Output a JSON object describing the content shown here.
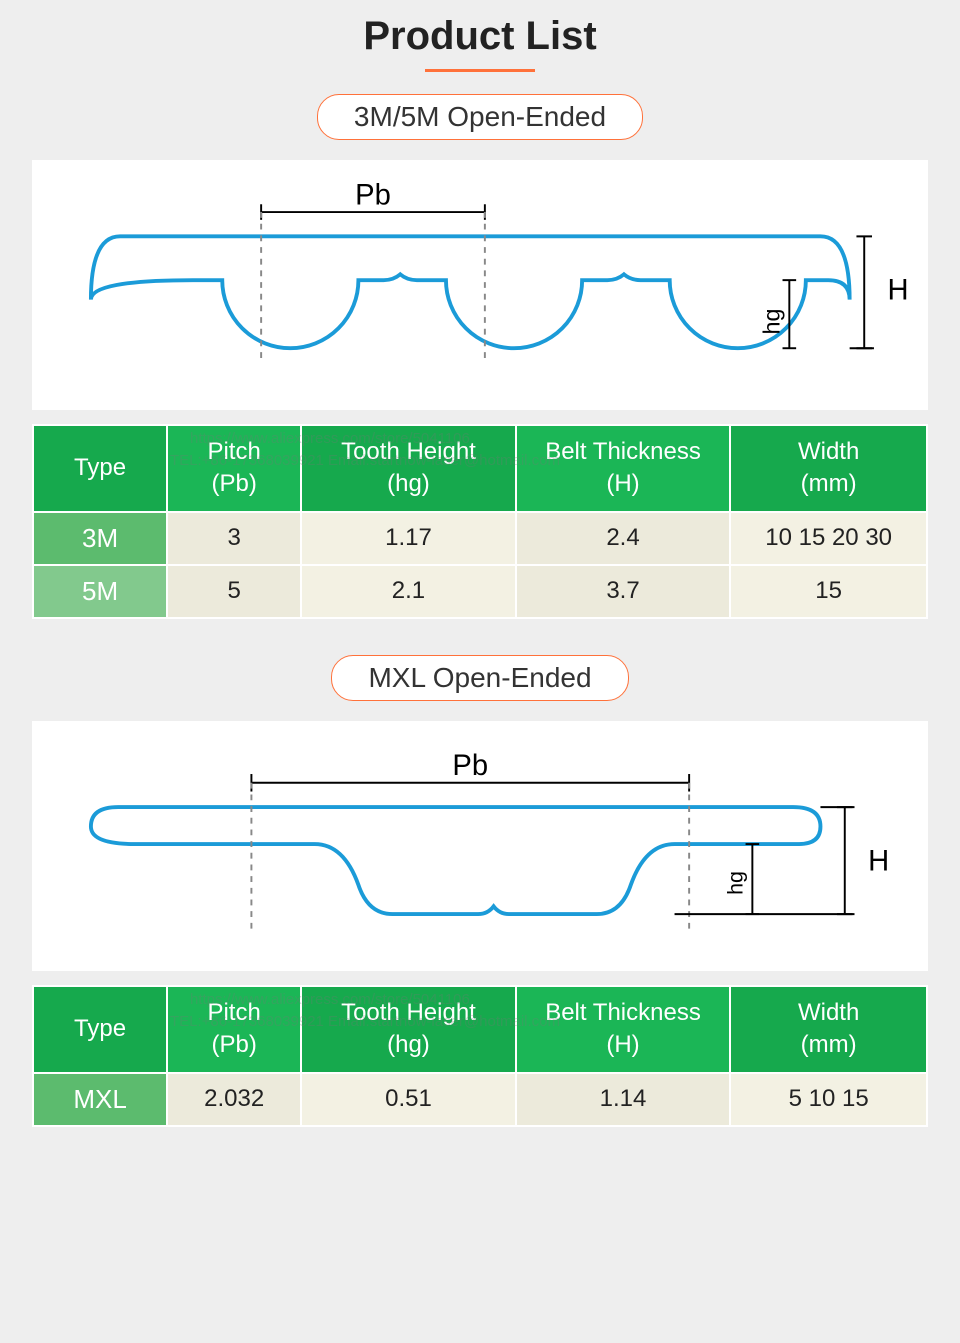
{
  "title": "Product List",
  "palette": {
    "accent_orange": "#ff713a",
    "diagram_blue": "#1b9bd8",
    "dim_dash": "#888888",
    "header_green": "#16a94d",
    "header_green2": "#1bb656",
    "label_green_dark": "#5cbb6e",
    "label_green_light": "#82c98d",
    "row_beige": "#eceadb",
    "row_beige2": "#f3f1e3",
    "text_dark": "#222222"
  },
  "sections": [
    {
      "badge": "3M/5M Open-Ended",
      "diagram_kind": "htd",
      "dim_labels": {
        "pitch": "Pb",
        "tooth": "hg",
        "height": "H"
      },
      "table": {
        "columns": [
          "Type",
          "Pitch\n(Pb)",
          "Tooth Height\n(hg)",
          "Belt Thickness\n(H)",
          "Width\n(mm)"
        ],
        "col_widths_pct": [
          15,
          15,
          24,
          24,
          22
        ],
        "rows": [
          {
            "label": "3M",
            "cells": [
              "3",
              "1.17",
              "2.4",
              "10 15 20 30"
            ]
          },
          {
            "label": "5M",
            "cells": [
              "5",
              "2.1",
              "3.7",
              "15"
            ]
          }
        ]
      }
    },
    {
      "badge": "MXL Open-Ended",
      "diagram_kind": "mxl",
      "dim_labels": {
        "pitch": "Pb",
        "tooth": "hg",
        "height": "H"
      },
      "table": {
        "columns": [
          "Type",
          "Pitch\n(Pb)",
          "Tooth Height\n(hg)",
          "Belt Thickness\n(H)",
          "Width\n(mm)"
        ],
        "col_widths_pct": [
          15,
          15,
          24,
          24,
          22
        ],
        "rows": [
          {
            "label": "MXL",
            "cells": [
              "2.032",
              "0.51",
              "1.14",
              "5 10 15"
            ]
          }
        ]
      }
    }
  ],
  "watermarks": [
    "TEL:+86-17368039921   Email:startnow-laser@hotmail.com",
    "https://www.aliexpress.com/store/5041106"
  ],
  "svg": {
    "stroke_width": 4,
    "dash_width": 2,
    "dash_pattern": "6,6",
    "font_size_dim": 30
  }
}
